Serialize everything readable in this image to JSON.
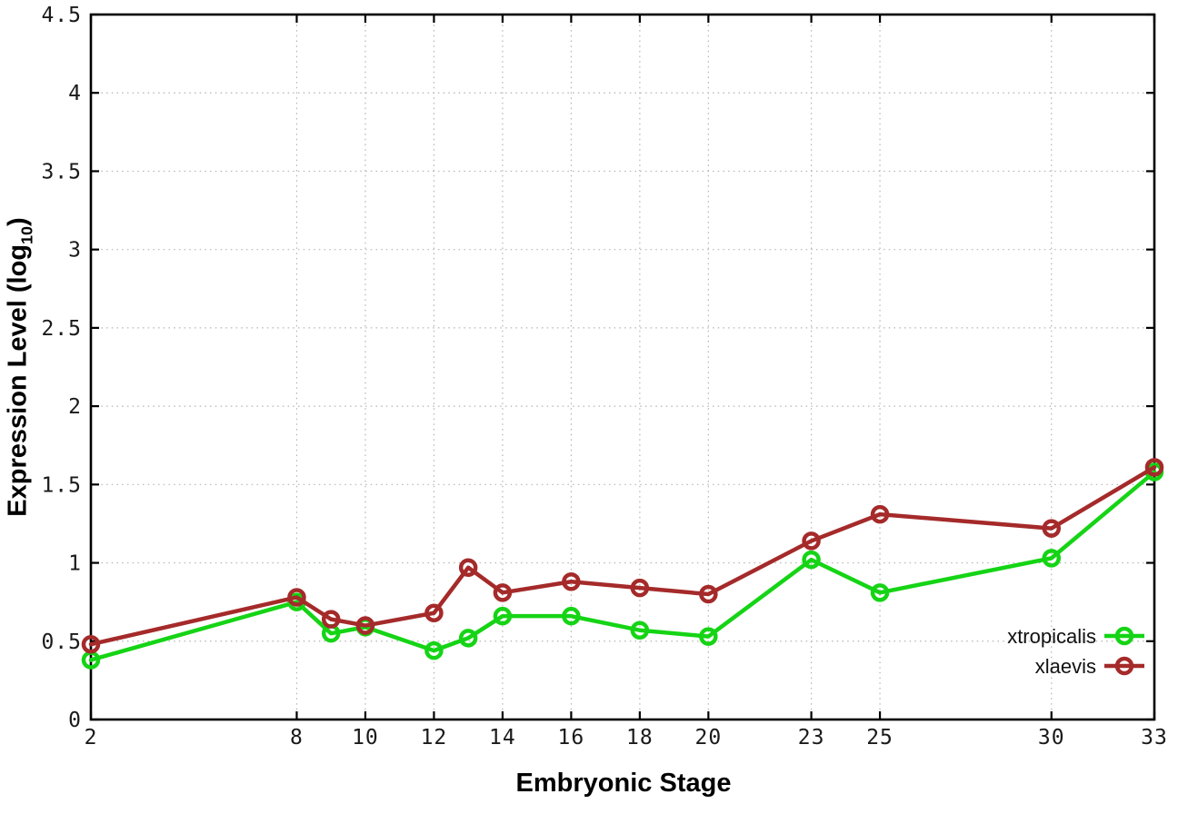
{
  "chart_data": {
    "type": "line",
    "title": "",
    "xlabel": "Embryonic Stage",
    "ylabel": "Expression Level (log10)",
    "ylabel_parts": {
      "prefix": "Expression Level (log",
      "subscript": "10",
      "suffix": ")"
    },
    "xlim": [
      2,
      33
    ],
    "ylim": [
      0,
      4.5
    ],
    "xticks": [
      2,
      8,
      10,
      12,
      14,
      16,
      18,
      20,
      23,
      25,
      30,
      33
    ],
    "yticks": [
      0,
      0.5,
      1,
      1.5,
      2,
      2.5,
      3,
      3.5,
      4,
      4.5
    ],
    "grid": true,
    "marker": "open-circle",
    "legend_position": "inside bottom right",
    "x": [
      2,
      8,
      9,
      10,
      12,
      13,
      14,
      16,
      18,
      20,
      23,
      25,
      30,
      33
    ],
    "series": [
      {
        "name": "xtropicalis",
        "color": "#15d415",
        "values": [
          0.38,
          0.75,
          0.55,
          0.59,
          0.44,
          0.52,
          0.66,
          0.66,
          0.57,
          0.53,
          1.02,
          0.81,
          1.03,
          1.58
        ]
      },
      {
        "name": "xlaevis",
        "color": "#a52a2a",
        "values": [
          0.48,
          0.78,
          0.64,
          0.6,
          0.68,
          0.97,
          0.81,
          0.88,
          0.84,
          0.8,
          1.14,
          1.31,
          1.22,
          1.61
        ]
      }
    ],
    "axis_color": "#000000",
    "grid_color": "#b3b3b3",
    "tick_label_color": "#1a1a1a"
  }
}
